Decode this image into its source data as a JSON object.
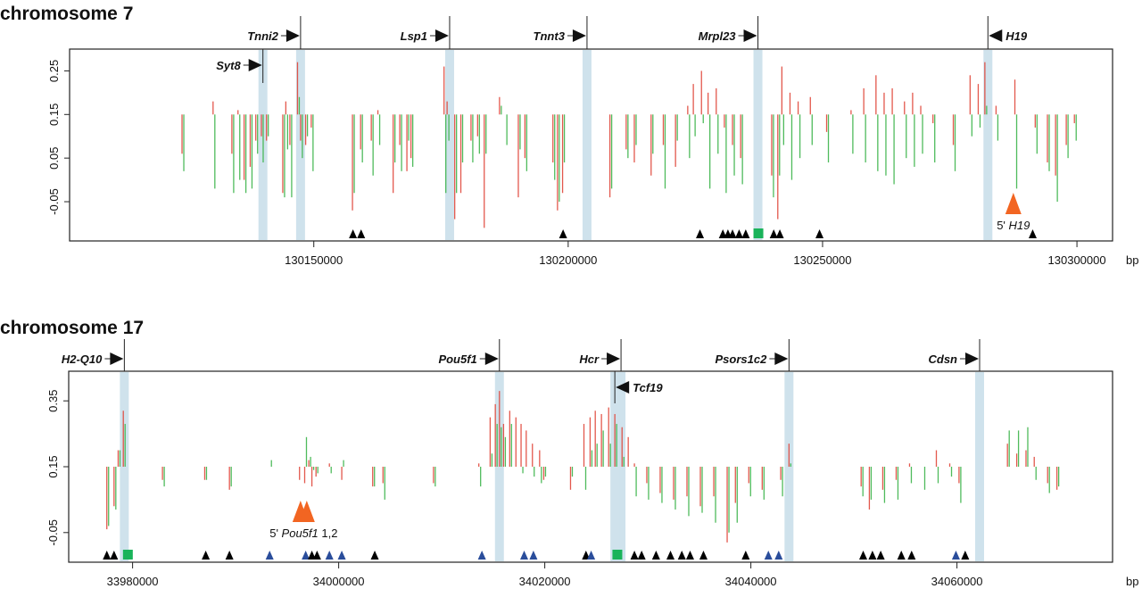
{
  "colors": {
    "red_series": "#e0463a",
    "green_series": "#3cb44b",
    "highlight": "#cfe2ec",
    "marker_black": "#000000",
    "marker_blue": "#2a4d9b",
    "marker_green": "#19b35a",
    "marker_orange": "#f26522"
  },
  "chart_data": [
    {
      "type": "bar",
      "title": "chromosome 7",
      "xlabel": "bp",
      "x_ticks": [
        130150000,
        130200000,
        130250000,
        130300000
      ],
      "x_tick_labels": [
        "130150000",
        "130200000",
        "130250000",
        "130300000"
      ],
      "y_ticks": [
        0.25,
        0.15,
        0.05,
        -0.05
      ],
      "y_tick_labels": [
        "0.25",
        "0.15",
        "0.05",
        "-0.05"
      ],
      "xlim": [
        130102000,
        130307000
      ],
      "ylim": [
        -0.14,
        0.3
      ],
      "baseline": 0.15,
      "genes": [
        {
          "name": "Syt8",
          "bp": 130140000,
          "strand": "+",
          "row": "inside"
        },
        {
          "name": "Tnni2",
          "bp": 130147400,
          "strand": "+",
          "row": "above"
        },
        {
          "name": "Lsp1",
          "bp": 130176700,
          "strand": "+",
          "row": "above"
        },
        {
          "name": "Tnnt3",
          "bp": 130203700,
          "strand": "+",
          "row": "above"
        },
        {
          "name": "Mrpl23",
          "bp": 130237300,
          "strand": "+",
          "row": "above"
        },
        {
          "name": "H19",
          "bp": 130282500,
          "strand": "-",
          "row": "above"
        }
      ],
      "bars_columns": [
        "bp",
        "red",
        "green"
      ],
      "bars": [
        [
          130124100,
          0.06,
          0.02
        ],
        [
          130130200,
          0.18,
          -0.02
        ],
        [
          130133900,
          0.06,
          -0.03
        ],
        [
          130135100,
          0.16,
          0.0
        ],
        [
          130136300,
          0.0,
          -0.03
        ],
        [
          130137500,
          0.03,
          -0.02
        ],
        [
          130138600,
          0.09,
          0.06
        ],
        [
          130139700,
          0.1,
          0.04
        ],
        [
          130140700,
          0.09,
          0.1
        ],
        [
          130143900,
          -0.03,
          -0.04
        ],
        [
          130144500,
          0.18,
          0.07
        ],
        [
          130145300,
          0.08,
          -0.04
        ],
        [
          130146800,
          0.27,
          0.19
        ],
        [
          130147400,
          0.09,
          0.05
        ],
        [
          130148400,
          0.08,
          0.1
        ],
        [
          130149500,
          0.12,
          0.02
        ],
        [
          130157600,
          -0.07,
          -0.03
        ],
        [
          130159200,
          0.07,
          0.04
        ],
        [
          130161300,
          0.09,
          0.01
        ],
        [
          130162600,
          0.16,
          0.08
        ],
        [
          130165600,
          -0.03,
          0.04
        ],
        [
          130166900,
          0.08,
          0.02
        ],
        [
          130168300,
          0.02,
          0.09
        ],
        [
          130169100,
          0.05,
          0.03
        ],
        [
          130175600,
          0.26,
          -0.03
        ],
        [
          130176200,
          0.18,
          0.09
        ],
        [
          130177700,
          -0.09,
          -0.03
        ],
        [
          130178900,
          -0.03,
          0.04
        ],
        [
          130180900,
          0.09,
          0.04
        ],
        [
          130182200,
          0.1,
          0.06
        ],
        [
          130183500,
          -0.11,
          0.06
        ],
        [
          130186500,
          0.19,
          0.17
        ],
        [
          130187600,
          0.15,
          0.08
        ],
        [
          130190200,
          -0.04,
          0.07
        ],
        [
          130191500,
          0.05,
          0.02
        ],
        [
          130197000,
          0.04,
          0.0
        ],
        [
          130197900,
          -0.07,
          -0.05
        ],
        [
          130198900,
          -0.03,
          0.04
        ],
        [
          130208200,
          -0.04,
          -0.02
        ],
        [
          130211400,
          0.07,
          0.05
        ],
        [
          130213000,
          0.04,
          0.08
        ],
        [
          130216300,
          0.01,
          0.06
        ],
        [
          130218700,
          0.08,
          -0.02
        ],
        [
          130221100,
          0.03,
          0.09
        ],
        [
          130223500,
          0.17,
          0.05
        ],
        [
          130224600,
          0.22,
          0.1
        ],
        [
          130226200,
          0.25,
          0.13
        ],
        [
          130227500,
          0.2,
          -0.02
        ],
        [
          130229100,
          0.21,
          0.06
        ],
        [
          130230700,
          0.12,
          -0.03
        ],
        [
          130232300,
          0.08,
          0.01
        ],
        [
          130233900,
          0.05,
          -0.01
        ],
        [
          130240000,
          0.01,
          -0.04
        ],
        [
          130241200,
          -0.09,
          0.01
        ],
        [
          130242000,
          0.26,
          0.08
        ],
        [
          130243600,
          0.2,
          0.0
        ],
        [
          130245200,
          0.18,
          0.05
        ],
        [
          130247600,
          0.19,
          0.08
        ],
        [
          130250800,
          0.11,
          0.04
        ],
        [
          130255600,
          0.16,
          0.06
        ],
        [
          130258100,
          0.21,
          0.04
        ],
        [
          130260500,
          0.24,
          0.02
        ],
        [
          130262100,
          0.2,
          0.01
        ],
        [
          130263700,
          0.21,
          -0.01
        ],
        [
          130266100,
          0.18,
          0.05
        ],
        [
          130267700,
          0.2,
          0.03
        ],
        [
          130269300,
          0.17,
          0.06
        ],
        [
          130271700,
          0.13,
          0.04
        ],
        [
          130275700,
          0.08,
          0.02
        ],
        [
          130279000,
          0.24,
          0.1
        ],
        [
          130280600,
          0.22,
          0.12
        ],
        [
          130281900,
          0.27,
          0.17
        ],
        [
          130284100,
          0.17,
          0.09
        ],
        [
          130287800,
          0.23,
          -0.02
        ],
        [
          130291800,
          0.12,
          0.06
        ],
        [
          130294200,
          0.04,
          0.02
        ],
        [
          130295800,
          0.01,
          -0.05
        ],
        [
          130297900,
          0.08,
          0.05
        ],
        [
          130299500,
          0.13,
          0.09
        ]
      ],
      "site_markers": [
        {
          "bp": 130157700,
          "kind": "black"
        },
        {
          "bp": 130159300,
          "kind": "black"
        },
        {
          "bp": 130199000,
          "kind": "black"
        },
        {
          "bp": 130225900,
          "kind": "black"
        },
        {
          "bp": 130230400,
          "kind": "black"
        },
        {
          "bp": 130231400,
          "kind": "black"
        },
        {
          "bp": 130232300,
          "kind": "black"
        },
        {
          "bp": 130233600,
          "kind": "black"
        },
        {
          "bp": 130234900,
          "kind": "black"
        },
        {
          "bp": 130237300,
          "kind": "green-square"
        },
        {
          "bp": 130240400,
          "kind": "black"
        },
        {
          "bp": 130241600,
          "kind": "black"
        },
        {
          "bp": 130249400,
          "kind": "black"
        },
        {
          "bp": 130291300,
          "kind": "black"
        }
      ],
      "annotations": [
        {
          "bp": 130287500,
          "prefix": "5' ",
          "gene": "H19",
          "suffix": "",
          "count": 1
        }
      ]
    },
    {
      "type": "bar",
      "title": "chromosome 17",
      "xlabel": "bp",
      "x_ticks": [
        33980000,
        34000000,
        34020000,
        34040000,
        34060000
      ],
      "x_tick_labels": [
        "33980000",
        "34000000",
        "34020000",
        "34040000",
        "34060000"
      ],
      "y_ticks": [
        0.35,
        0.15,
        -0.05
      ],
      "y_tick_labels": [
        "0.35",
        "0.15",
        "-0.05"
      ],
      "xlim": [
        33973800,
        34075100
      ],
      "ylim": [
        -0.14,
        0.44
      ],
      "baseline": 0.15,
      "genes": [
        {
          "name": "H2-Q10",
          "bp": 33979200,
          "strand": "+",
          "row": "above"
        },
        {
          "name": "Pou5f1",
          "bp": 34015600,
          "strand": "+",
          "row": "above"
        },
        {
          "name": "Hcr",
          "bp": 34027400,
          "strand": "+",
          "row": "above"
        },
        {
          "name": "Tcf19",
          "bp": 34026800,
          "strand": "-",
          "row": "inside"
        },
        {
          "name": "Psors1c2",
          "bp": 34043700,
          "strand": "+",
          "row": "above"
        },
        {
          "name": "Cdsn",
          "bp": 34062200,
          "strand": "+",
          "row": "above"
        }
      ],
      "bars_columns": [
        "bp",
        "red",
        "green"
      ],
      "bars": [
        [
          33977500,
          -0.04,
          -0.03
        ],
        [
          33978200,
          0.03,
          0.02
        ],
        [
          33978600,
          0.2,
          0.2
        ],
        [
          33979100,
          0.32,
          0.28
        ],
        [
          33982900,
          0.11,
          0.09
        ],
        [
          33987000,
          0.11,
          0.11
        ],
        [
          33989400,
          0.08,
          0.09
        ],
        [
          33993300,
          0.15,
          0.17
        ],
        [
          33996200,
          0.11,
          0.15
        ],
        [
          33996700,
          0.1,
          0.24
        ],
        [
          33997100,
          0.17,
          0.18
        ],
        [
          33997400,
          0.09,
          0.14
        ],
        [
          33997800,
          0.12,
          0.13
        ],
        [
          33999100,
          0.16,
          0.13
        ],
        [
          34000300,
          0.11,
          0.17
        ],
        [
          34003300,
          0.09,
          0.09
        ],
        [
          34004300,
          0.1,
          0.05
        ],
        [
          34009200,
          0.1,
          0.09
        ],
        [
          34013600,
          0.16,
          0.09
        ],
        [
          34014700,
          0.3,
          0.19
        ],
        [
          34015200,
          0.34,
          0.28
        ],
        [
          34015600,
          0.38,
          0.27
        ],
        [
          34016000,
          0.28,
          0.24
        ],
        [
          34016600,
          0.32,
          0.28
        ],
        [
          34017200,
          0.3,
          0.15
        ],
        [
          34017700,
          0.28,
          0.13
        ],
        [
          34018200,
          0.26,
          0.15
        ],
        [
          34018800,
          0.22,
          0.12
        ],
        [
          34019500,
          0.2,
          0.1
        ],
        [
          34019900,
          0.11,
          0.12
        ],
        [
          34022500,
          0.08,
          0.12
        ],
        [
          34023800,
          0.28,
          0.08
        ],
        [
          34024400,
          0.3,
          0.2
        ],
        [
          34024900,
          0.32,
          0.22
        ],
        [
          34025500,
          0.31,
          0.26
        ],
        [
          34026200,
          0.33,
          0.22
        ],
        [
          34026800,
          0.31,
          0.28
        ],
        [
          34027500,
          0.27,
          0.18
        ],
        [
          34028100,
          0.24,
          0.15
        ],
        [
          34028700,
          0.16,
          0.06
        ],
        [
          34029900,
          0.1,
          0.05
        ],
        [
          34031200,
          0.07,
          0.04
        ],
        [
          34032500,
          0.05,
          0.02
        ],
        [
          34033800,
          0.06,
          0.0
        ],
        [
          34035100,
          0.03,
          0.01
        ],
        [
          34036400,
          0.06,
          -0.02
        ],
        [
          34037700,
          -0.08,
          -0.05
        ],
        [
          34038500,
          0.04,
          -0.02
        ],
        [
          34039800,
          0.1,
          0.06
        ],
        [
          34041100,
          0.08,
          0.05
        ],
        [
          34042900,
          0.11,
          0.06
        ],
        [
          34043700,
          0.22,
          0.16
        ],
        [
          34050700,
          0.09,
          0.06
        ],
        [
          34051500,
          0.02,
          0.05
        ],
        [
          34052800,
          0.08,
          0.04
        ],
        [
          34054100,
          0.11,
          0.05
        ],
        [
          34055400,
          0.16,
          0.1
        ],
        [
          34056700,
          0.15,
          0.08
        ],
        [
          34058000,
          0.2,
          0.1
        ],
        [
          34059300,
          0.16,
          0.12
        ],
        [
          34060200,
          0.1,
          0.04
        ],
        [
          34064900,
          0.22,
          0.26
        ],
        [
          34065800,
          0.19,
          0.26
        ],
        [
          34066700,
          0.2,
          0.27
        ],
        [
          34067500,
          0.18,
          0.11
        ],
        [
          34068800,
          0.1,
          0.07
        ],
        [
          34069700,
          0.08,
          0.09
        ]
      ],
      "site_markers": [
        {
          "bp": 33977500,
          "kind": "black"
        },
        {
          "bp": 33978200,
          "kind": "black"
        },
        {
          "bp": 33979500,
          "kind": "green-square"
        },
        {
          "bp": 33987100,
          "kind": "black"
        },
        {
          "bp": 33989400,
          "kind": "black"
        },
        {
          "bp": 33993300,
          "kind": "blue"
        },
        {
          "bp": 33996800,
          "kind": "blue"
        },
        {
          "bp": 33997400,
          "kind": "black"
        },
        {
          "bp": 33997900,
          "kind": "black"
        },
        {
          "bp": 33999100,
          "kind": "blue"
        },
        {
          "bp": 34000300,
          "kind": "blue"
        },
        {
          "bp": 34003500,
          "kind": "black"
        },
        {
          "bp": 34013900,
          "kind": "blue"
        },
        {
          "bp": 34018000,
          "kind": "blue"
        },
        {
          "bp": 34018900,
          "kind": "blue"
        },
        {
          "bp": 34024000,
          "kind": "black"
        },
        {
          "bp": 34024500,
          "kind": "blue"
        },
        {
          "bp": 34027000,
          "kind": "green-square"
        },
        {
          "bp": 34028700,
          "kind": "black"
        },
        {
          "bp": 34029400,
          "kind": "black"
        },
        {
          "bp": 34030800,
          "kind": "black"
        },
        {
          "bp": 34032200,
          "kind": "black"
        },
        {
          "bp": 34033300,
          "kind": "black"
        },
        {
          "bp": 34034100,
          "kind": "black"
        },
        {
          "bp": 34035400,
          "kind": "black"
        },
        {
          "bp": 34039500,
          "kind": "black"
        },
        {
          "bp": 34041700,
          "kind": "blue"
        },
        {
          "bp": 34042700,
          "kind": "blue"
        },
        {
          "bp": 34050900,
          "kind": "black"
        },
        {
          "bp": 34051800,
          "kind": "black"
        },
        {
          "bp": 34052600,
          "kind": "black"
        },
        {
          "bp": 34054600,
          "kind": "black"
        },
        {
          "bp": 34055600,
          "kind": "black"
        },
        {
          "bp": 34059900,
          "kind": "blue"
        },
        {
          "bp": 34060800,
          "kind": "black"
        }
      ],
      "annotations": [
        {
          "bp": 33996600,
          "prefix": "5' ",
          "gene": "Pou5f1",
          "suffix": " 1,2",
          "count": 2
        }
      ]
    }
  ]
}
